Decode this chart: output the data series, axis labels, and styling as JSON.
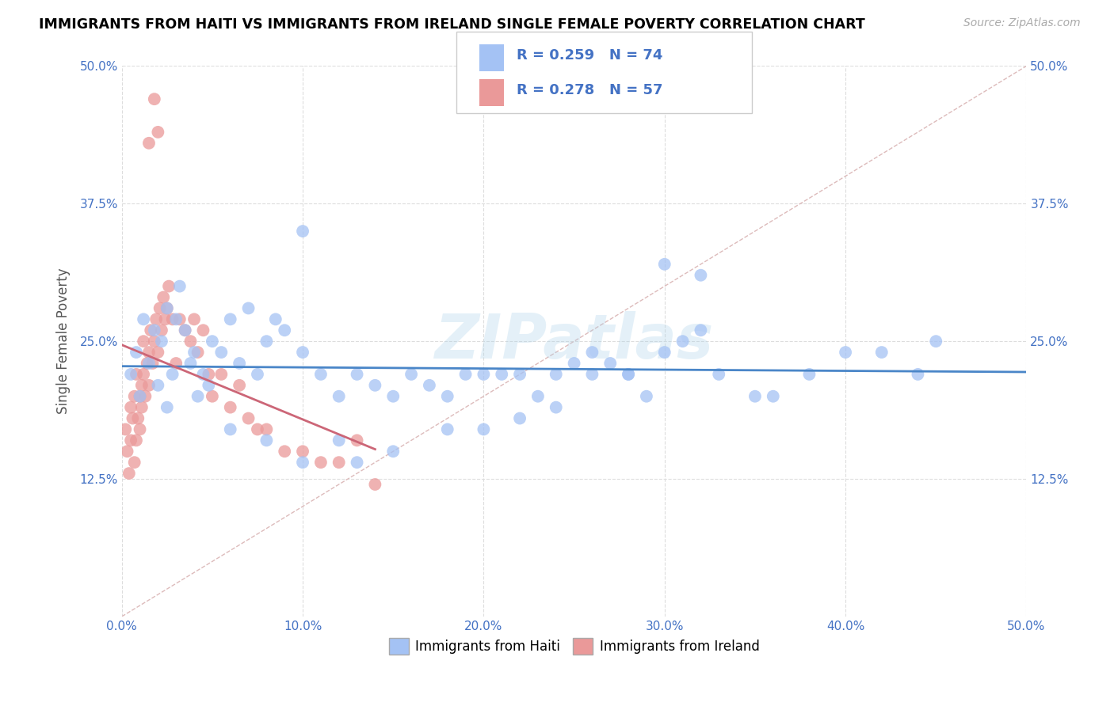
{
  "title": "IMMIGRANTS FROM HAITI VS IMMIGRANTS FROM IRELAND SINGLE FEMALE POVERTY CORRELATION CHART",
  "source": "Source: ZipAtlas.com",
  "ylabel": "Single Female Poverty",
  "xlim": [
    0.0,
    0.5
  ],
  "ylim": [
    0.0,
    0.5
  ],
  "xticks": [
    0.0,
    0.1,
    0.2,
    0.3,
    0.4,
    0.5
  ],
  "yticks": [
    0.125,
    0.25,
    0.375,
    0.5
  ],
  "xticklabels": [
    "0.0%",
    "10.0%",
    "20.0%",
    "30.0%",
    "40.0%",
    "50.0%"
  ],
  "yticklabels": [
    "12.5%",
    "25.0%",
    "37.5%",
    "50.0%"
  ],
  "haiti_color": "#a4c2f4",
  "ireland_color": "#ea9999",
  "haiti_R": 0.259,
  "haiti_N": 74,
  "ireland_R": 0.278,
  "ireland_N": 57,
  "legend_label_haiti": "Immigrants from Haiti",
  "legend_label_ireland": "Immigrants from Ireland",
  "watermark": "ZIPatlas",
  "haiti_line_color": "#4a86c8",
  "ireland_line_color": "#cc6677",
  "haiti_x": [
    0.005,
    0.008,
    0.01,
    0.012,
    0.015,
    0.018,
    0.02,
    0.022,
    0.025,
    0.025,
    0.028,
    0.03,
    0.032,
    0.035,
    0.038,
    0.04,
    0.042,
    0.045,
    0.048,
    0.05,
    0.055,
    0.06,
    0.065,
    0.07,
    0.075,
    0.08,
    0.085,
    0.09,
    0.1,
    0.1,
    0.11,
    0.12,
    0.13,
    0.14,
    0.15,
    0.16,
    0.17,
    0.18,
    0.19,
    0.2,
    0.21,
    0.22,
    0.23,
    0.24,
    0.25,
    0.26,
    0.27,
    0.28,
    0.29,
    0.3,
    0.31,
    0.32,
    0.33,
    0.35,
    0.36,
    0.38,
    0.4,
    0.42,
    0.44,
    0.45,
    0.3,
    0.32,
    0.28,
    0.26,
    0.24,
    0.22,
    0.2,
    0.18,
    0.15,
    0.13,
    0.12,
    0.1,
    0.08,
    0.06
  ],
  "haiti_y": [
    0.22,
    0.24,
    0.2,
    0.27,
    0.23,
    0.26,
    0.21,
    0.25,
    0.28,
    0.19,
    0.22,
    0.27,
    0.3,
    0.26,
    0.23,
    0.24,
    0.2,
    0.22,
    0.21,
    0.25,
    0.24,
    0.27,
    0.23,
    0.28,
    0.22,
    0.25,
    0.27,
    0.26,
    0.35,
    0.24,
    0.22,
    0.2,
    0.22,
    0.21,
    0.2,
    0.22,
    0.21,
    0.2,
    0.22,
    0.22,
    0.22,
    0.22,
    0.2,
    0.22,
    0.23,
    0.24,
    0.23,
    0.22,
    0.2,
    0.24,
    0.25,
    0.26,
    0.22,
    0.2,
    0.2,
    0.22,
    0.24,
    0.24,
    0.22,
    0.25,
    0.32,
    0.31,
    0.22,
    0.22,
    0.19,
    0.18,
    0.17,
    0.17,
    0.15,
    0.14,
    0.16,
    0.14,
    0.16,
    0.17
  ],
  "ireland_x": [
    0.002,
    0.003,
    0.004,
    0.005,
    0.005,
    0.006,
    0.007,
    0.007,
    0.008,
    0.008,
    0.009,
    0.01,
    0.01,
    0.011,
    0.011,
    0.012,
    0.012,
    0.013,
    0.014,
    0.015,
    0.015,
    0.016,
    0.017,
    0.018,
    0.019,
    0.02,
    0.021,
    0.022,
    0.023,
    0.024,
    0.025,
    0.026,
    0.028,
    0.03,
    0.032,
    0.035,
    0.038,
    0.04,
    0.042,
    0.045,
    0.048,
    0.05,
    0.055,
    0.06,
    0.065,
    0.07,
    0.075,
    0.08,
    0.09,
    0.1,
    0.11,
    0.12,
    0.13,
    0.14,
    0.015,
    0.018,
    0.02
  ],
  "ireland_y": [
    0.17,
    0.15,
    0.13,
    0.16,
    0.19,
    0.18,
    0.2,
    0.14,
    0.22,
    0.16,
    0.18,
    0.2,
    0.17,
    0.21,
    0.19,
    0.22,
    0.25,
    0.2,
    0.23,
    0.21,
    0.24,
    0.26,
    0.23,
    0.25,
    0.27,
    0.24,
    0.28,
    0.26,
    0.29,
    0.27,
    0.28,
    0.3,
    0.27,
    0.23,
    0.27,
    0.26,
    0.25,
    0.27,
    0.24,
    0.26,
    0.22,
    0.2,
    0.22,
    0.19,
    0.21,
    0.18,
    0.17,
    0.17,
    0.15,
    0.15,
    0.14,
    0.14,
    0.16,
    0.12,
    0.43,
    0.47,
    0.44
  ]
}
